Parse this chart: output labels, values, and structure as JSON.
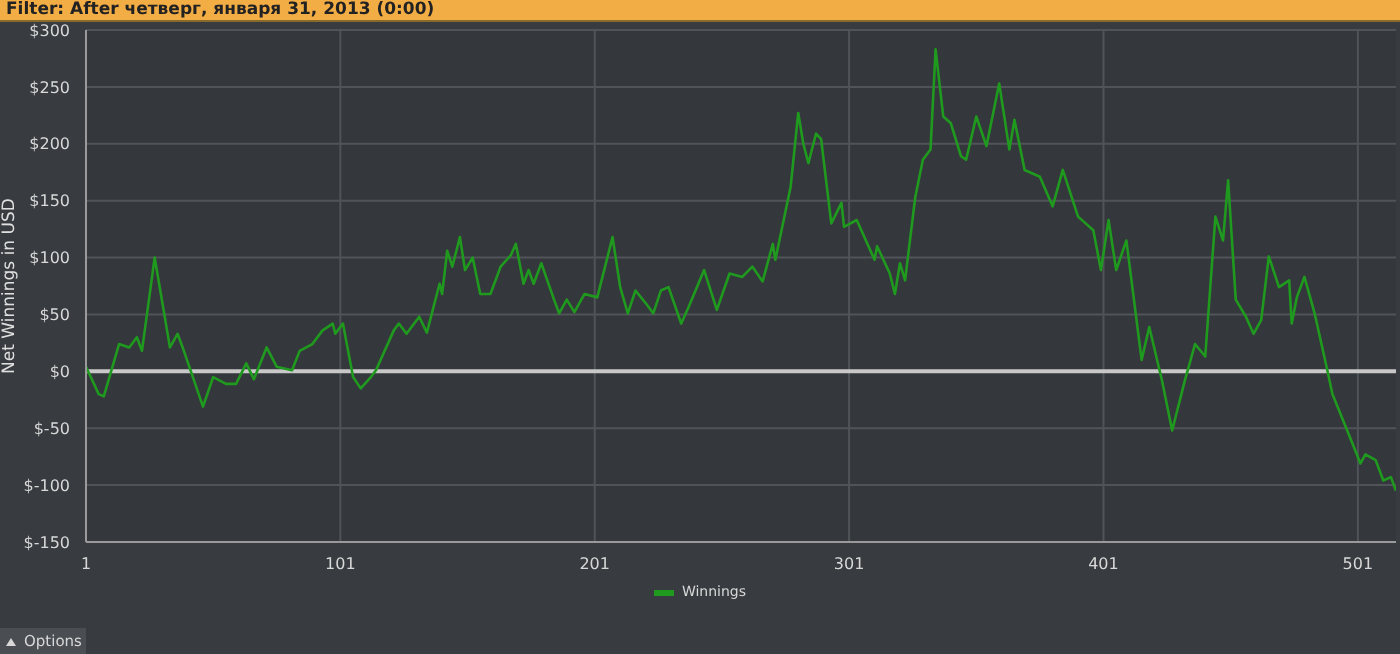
{
  "chart_data": {
    "type": "line",
    "title": "Filter: After четверг, января 31, 2013 (0:00)",
    "ylabel": "Net Winnings in USD",
    "annotations": [
      "Options"
    ],
    "x": [
      1,
      6,
      8,
      14,
      18,
      21,
      23,
      28,
      34,
      37,
      39,
      47,
      51,
      56,
      60,
      64,
      67,
      72,
      76,
      82,
      85,
      90,
      94,
      98,
      99,
      102,
      106,
      109,
      113,
      115,
      122,
      124,
      127,
      132,
      135,
      140,
      141,
      143,
      145,
      148,
      150,
      153,
      156,
      160,
      164,
      168,
      170,
      173,
      175,
      177,
      180,
      185,
      187,
      190,
      193,
      197,
      202,
      208,
      211,
      214,
      217,
      221,
      224,
      227,
      230,
      235,
      238,
      244,
      249,
      254,
      259,
      263,
      267,
      271,
      272,
      278,
      281,
      283,
      285,
      288,
      290,
      294,
      298,
      299,
      304,
      311,
      312,
      317,
      319,
      321,
      323,
      327,
      330,
      333,
      335,
      338,
      341,
      345,
      347,
      351,
      355,
      360,
      364,
      366,
      370,
      376,
      381,
      385,
      391,
      397,
      400,
      403,
      406,
      410,
      416,
      419,
      424,
      428,
      433,
      437,
      441,
      445,
      448,
      450,
      453,
      457,
      460,
      463,
      466,
      470,
      474,
      475,
      477,
      480,
      484,
      489,
      491,
      499,
      502,
      504,
      508,
      511,
      514,
      516
    ],
    "series": [
      {
        "name": "Winnings",
        "color": "#1f9a1f",
        "values": [
          4,
          -20,
          -22,
          24,
          21,
          30,
          18,
          100,
          21,
          33,
          21,
          -31,
          -5,
          -11,
          -11,
          7,
          -7,
          21,
          4,
          1,
          18,
          24,
          36,
          42,
          33,
          42,
          -5,
          -15,
          -5,
          1,
          36,
          42,
          33,
          48,
          34,
          77,
          68,
          106,
          92,
          118,
          89,
          100,
          68,
          68,
          92,
          102,
          112,
          77,
          89,
          77,
          95,
          63,
          51,
          63,
          52,
          68,
          65,
          118,
          74,
          51,
          71,
          60,
          51,
          71,
          74,
          42,
          57,
          89,
          54,
          86,
          83,
          92,
          79,
          112,
          98,
          162,
          227,
          200,
          183,
          209,
          204,
          130,
          148,
          127,
          133,
          98,
          110,
          86,
          68,
          95,
          80,
          153,
          186,
          195,
          283,
          224,
          218,
          189,
          186,
          224,
          198,
          253,
          195,
          221,
          177,
          171,
          145,
          177,
          136,
          124,
          89,
          133,
          89,
          115,
          10,
          39,
          -8,
          -52,
          -8,
          24,
          13,
          136,
          115,
          168,
          63,
          48,
          33,
          45,
          101,
          74,
          80,
          42,
          65,
          83,
          51,
          1,
          -20,
          -64,
          -81,
          -73,
          -78,
          -96,
          -93,
          -105
        ]
      }
    ],
    "xlim": [
      1,
      516
    ],
    "xticks": [
      1,
      101,
      201,
      301,
      401,
      501
    ],
    "ylim": [
      -150,
      300
    ],
    "yticks": [
      {
        "value": -150,
        "label": "$-150"
      },
      {
        "value": -100,
        "label": "$-100"
      },
      {
        "value": -50,
        "label": "$-50"
      },
      {
        "value": 0,
        "label": "$0"
      },
      {
        "value": 50,
        "label": "$50"
      },
      {
        "value": 100,
        "label": "$100"
      },
      {
        "value": 150,
        "label": "$150"
      },
      {
        "value": 200,
        "label": "$200"
      },
      {
        "value": 250,
        "label": "$250"
      },
      {
        "value": 300,
        "label": "$300"
      }
    ],
    "ref_lines": [
      {
        "axis": "y",
        "value": 0,
        "color": "#c8c8c8"
      }
    ],
    "grid": true,
    "legend": "bottom",
    "marker": "none",
    "line_style": "solid"
  }
}
